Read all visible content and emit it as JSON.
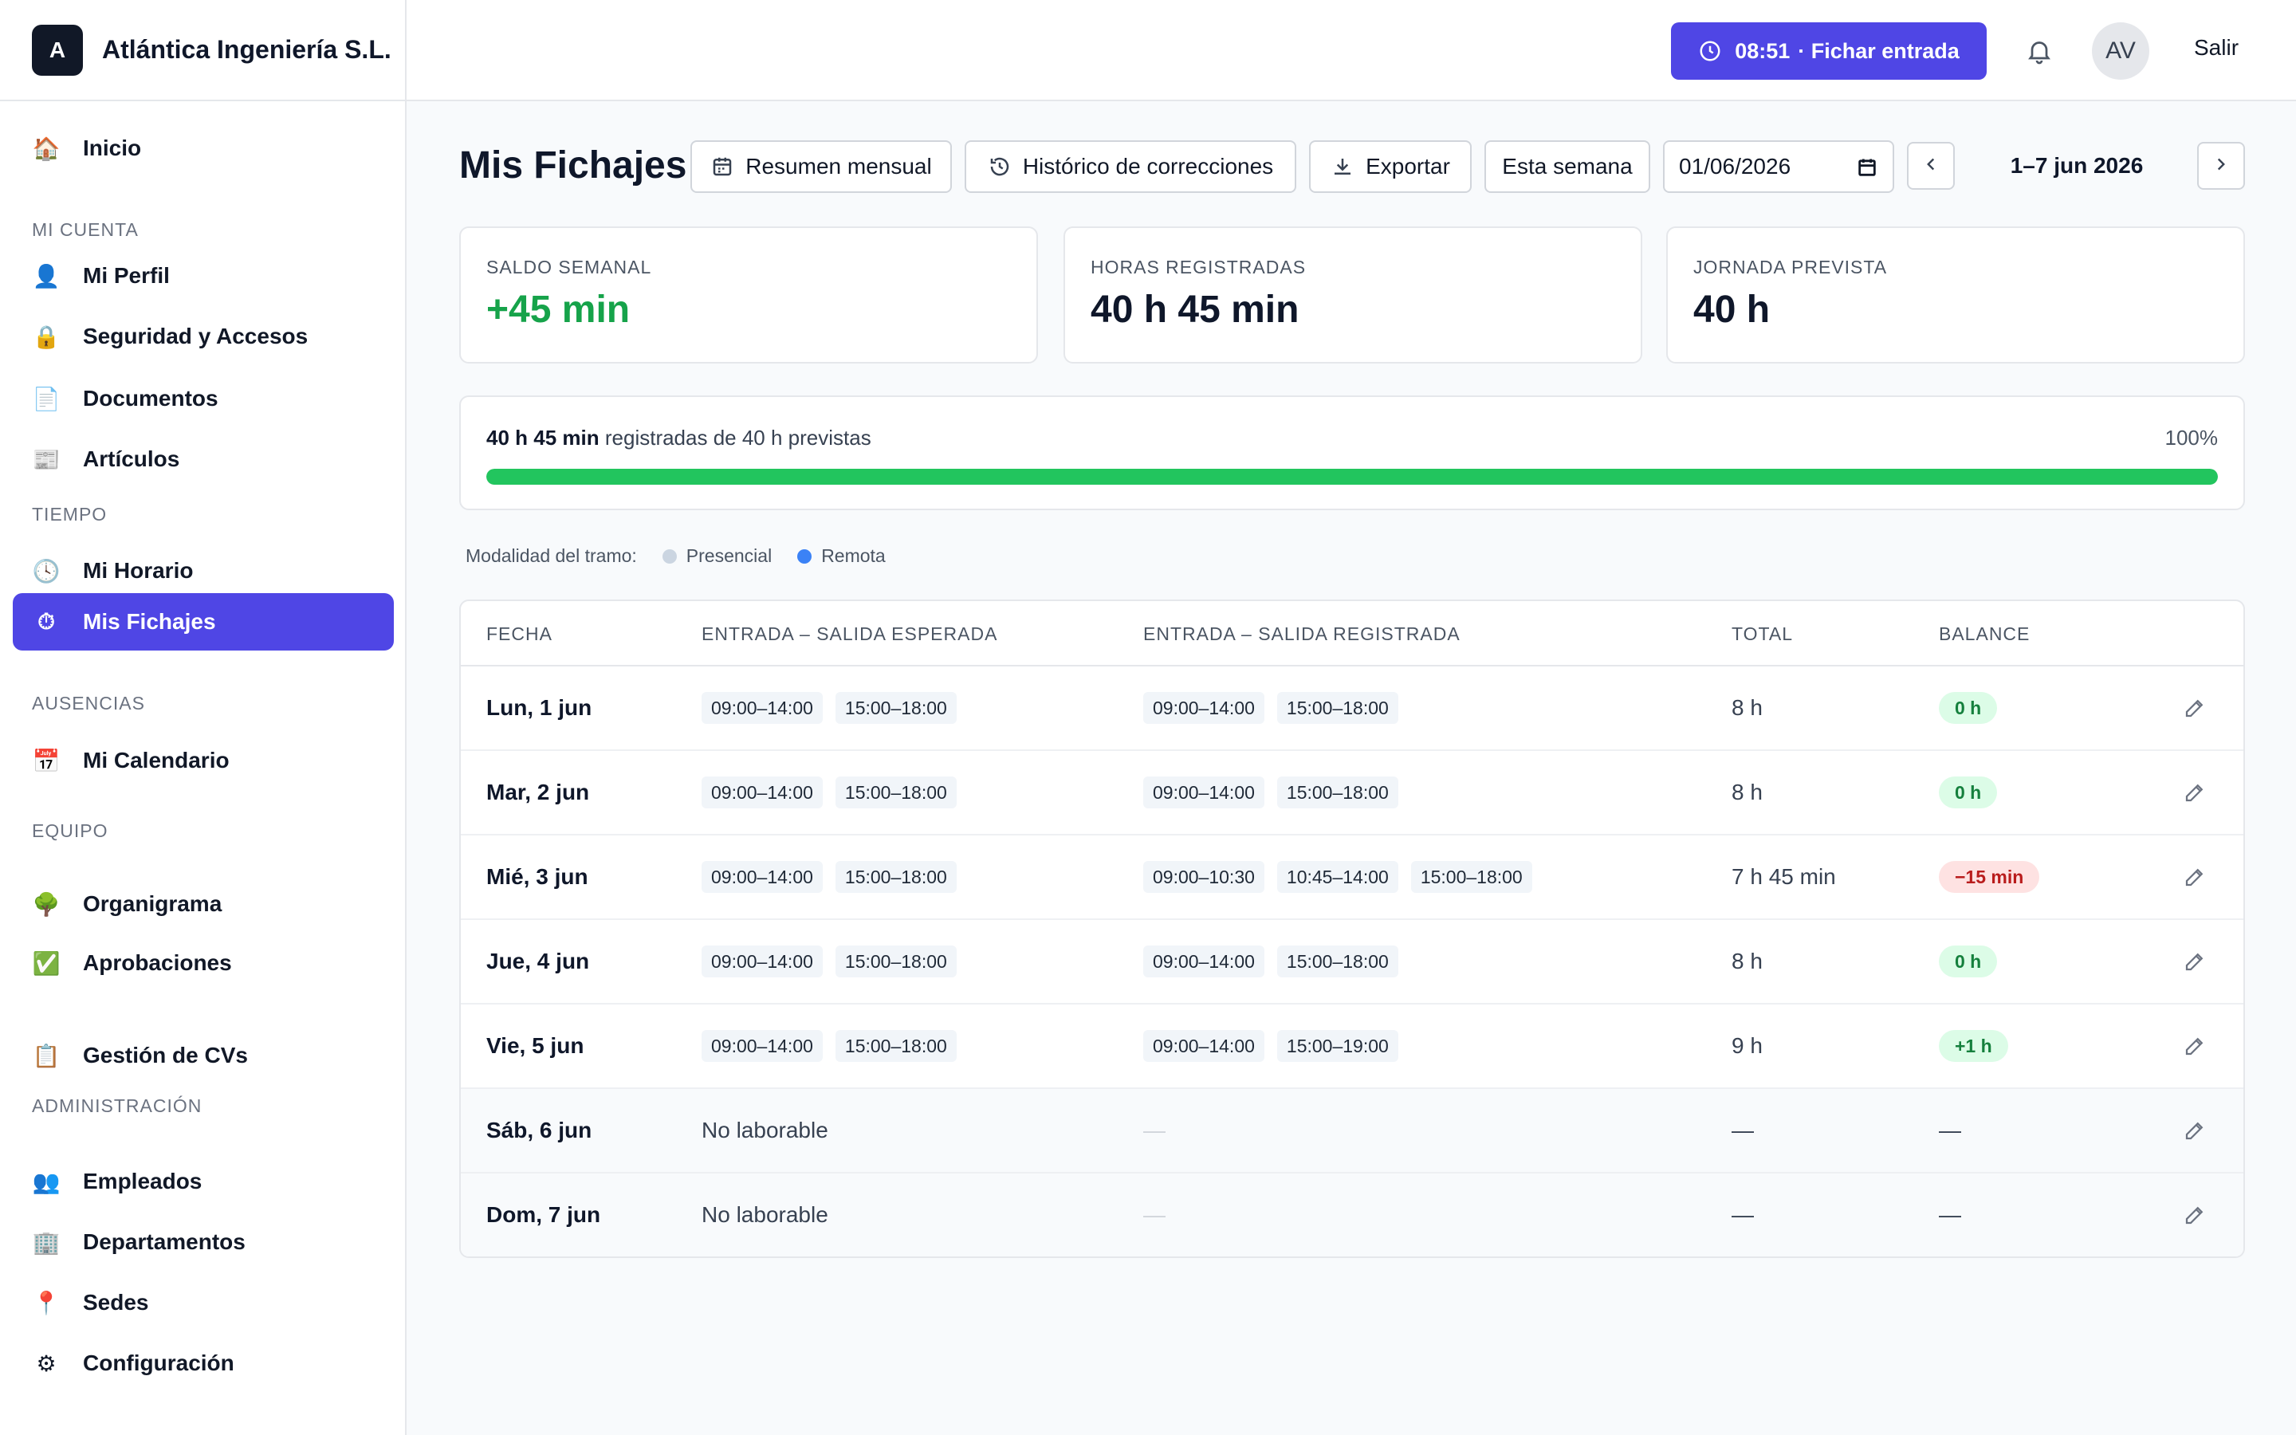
{
  "brand": {
    "logo_letter": "A",
    "name": "Atlántica Ingeniería S.L."
  },
  "sidebar": {
    "items": [
      {
        "label": "Inicio",
        "icon": "home-icon"
      },
      {
        "section": "MI CUENTA"
      },
      {
        "label": "Mi Perfil",
        "icon": "user-icon"
      },
      {
        "label": "Seguridad y Accesos",
        "icon": "lock-icon"
      },
      {
        "label": "Documentos",
        "icon": "document-icon"
      },
      {
        "label": "Artículos",
        "icon": "newspaper-icon"
      },
      {
        "section": "TIEMPO"
      },
      {
        "label": "Mi Horario",
        "icon": "clock-icon"
      },
      {
        "label": "Mis Fichajes",
        "icon": "stopwatch-icon",
        "active": true
      },
      {
        "section": "AUSENCIAS"
      },
      {
        "label": "Mi Calendario",
        "icon": "calendar-icon"
      },
      {
        "section": "EQUIPO"
      },
      {
        "label": "Organigrama",
        "icon": "tree-icon"
      },
      {
        "label": "Aprobaciones",
        "icon": "check-icon"
      },
      {
        "label": "Gestión de CVs",
        "icon": "clipboard-icon"
      },
      {
        "section": "ADMINISTRACIÓN"
      },
      {
        "label": "Empleados",
        "icon": "users-icon"
      },
      {
        "label": "Departamentos",
        "icon": "building-icon"
      },
      {
        "label": "Sedes",
        "icon": "pin-icon"
      },
      {
        "label": "Configuración",
        "icon": "gear-icon"
      }
    ]
  },
  "topbar": {
    "clock_time": "08:51",
    "clock_action": "· Fichar entrada",
    "avatar_initials": "AV",
    "logout": "Salir"
  },
  "header": {
    "title": "Mis Fichajes",
    "buttons": {
      "summary": "Resumen mensual",
      "history": "Histórico de correcciones",
      "export": "Exportar",
      "this_week": "Esta semana"
    },
    "date_value": "01/06/2026",
    "range_label": "1–7 jun 2026"
  },
  "stats": [
    {
      "label": "SALDO SEMANAL",
      "value": "+45 min"
    },
    {
      "label": "HORAS REGISTRADAS",
      "value": "40 h 45 min"
    },
    {
      "label": "JORNADA PREVISTA",
      "value": "40 h"
    }
  ],
  "progress": {
    "registered": "40 h 45 min",
    "text": "registradas de 40 h previstas",
    "percent_label": "100%",
    "fraction": 1.0
  },
  "legend": {
    "title": "Modalidad del tramo:",
    "items": [
      {
        "label": "Presencial",
        "color": "#cbd5e1"
      },
      {
        "label": "Remota",
        "color": "#3b82f6"
      }
    ]
  },
  "table": {
    "headers": [
      "FECHA",
      "ENTRADA – SALIDA ESPERADA",
      "ENTRADA – SALIDA REGISTRADA",
      "TOTAL",
      "BALANCE"
    ],
    "rows": [
      {
        "date": "Lun, 1 jun",
        "expected": [
          "09:00–14:00",
          "15:00–18:00"
        ],
        "registered": [
          "09:00–14:00",
          "15:00–18:00"
        ],
        "total": "8 h",
        "balance": "0 h",
        "balance_type": "ok"
      },
      {
        "date": "Mar, 2 jun",
        "expected": [
          "09:00–14:00",
          "15:00–18:00"
        ],
        "registered": [
          "09:00–14:00",
          "15:00–18:00"
        ],
        "total": "8 h",
        "balance": "0 h",
        "balance_type": "ok"
      },
      {
        "date": "Mié, 3 jun",
        "expected": [
          "09:00–14:00",
          "15:00–18:00"
        ],
        "registered": [
          "09:00–10:30",
          "10:45–14:00",
          "15:00–18:00"
        ],
        "total": "7 h 45 min",
        "balance": "−15 min",
        "balance_type": "neg"
      },
      {
        "date": "Jue, 4 jun",
        "expected": [
          "09:00–14:00",
          "15:00–18:00"
        ],
        "registered": [
          "09:00–14:00",
          "15:00–18:00"
        ],
        "total": "8 h",
        "balance": "0 h",
        "balance_type": "ok"
      },
      {
        "date": "Vie, 5 jun",
        "expected": [
          "09:00–14:00",
          "15:00–18:00"
        ],
        "registered": [
          "09:00–14:00",
          "15:00–19:00"
        ],
        "total": "9 h",
        "balance": "+1 h",
        "balance_type": "ok"
      },
      {
        "date": "Sáb, 6 jun",
        "expected_text": "No laborable",
        "registered_text": "—",
        "total": "—",
        "balance": "—",
        "balance_type": "none",
        "weekend": true
      },
      {
        "date": "Dom, 7 jun",
        "expected_text": "No laborable",
        "registered_text": "—",
        "total": "—",
        "balance": "—",
        "balance_type": "none",
        "weekend": true
      }
    ]
  }
}
